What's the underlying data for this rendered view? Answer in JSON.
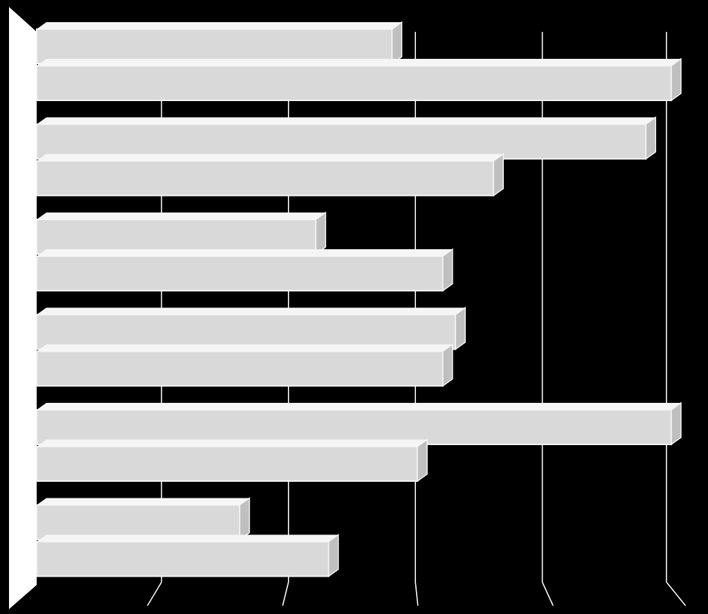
{
  "chart_data": {
    "type": "bar",
    "orientation": "horizontal",
    "style": "3d",
    "categories": [
      "",
      "",
      "",
      "",
      "",
      ""
    ],
    "series": [
      {
        "values": [
          2.8,
          4.8,
          2.2,
          3.3,
          5.0,
          1.6
        ]
      },
      {
        "values": [
          5.0,
          3.6,
          3.2,
          3.2,
          3.0,
          2.3
        ]
      }
    ],
    "xlim": [
      0,
      5
    ],
    "x_ticks": [
      0,
      1,
      2,
      3,
      4,
      5
    ],
    "grid": true,
    "legend": "none",
    "title": "",
    "xlabel": "",
    "ylabel": ""
  },
  "colors": {
    "background": "#000000",
    "bar_face": "#d9d9d9",
    "bar_highlight": "#f5f5f5",
    "bar_shade": "#bfbfbf",
    "wall": "#ffffff",
    "grid": "#ffffff"
  }
}
